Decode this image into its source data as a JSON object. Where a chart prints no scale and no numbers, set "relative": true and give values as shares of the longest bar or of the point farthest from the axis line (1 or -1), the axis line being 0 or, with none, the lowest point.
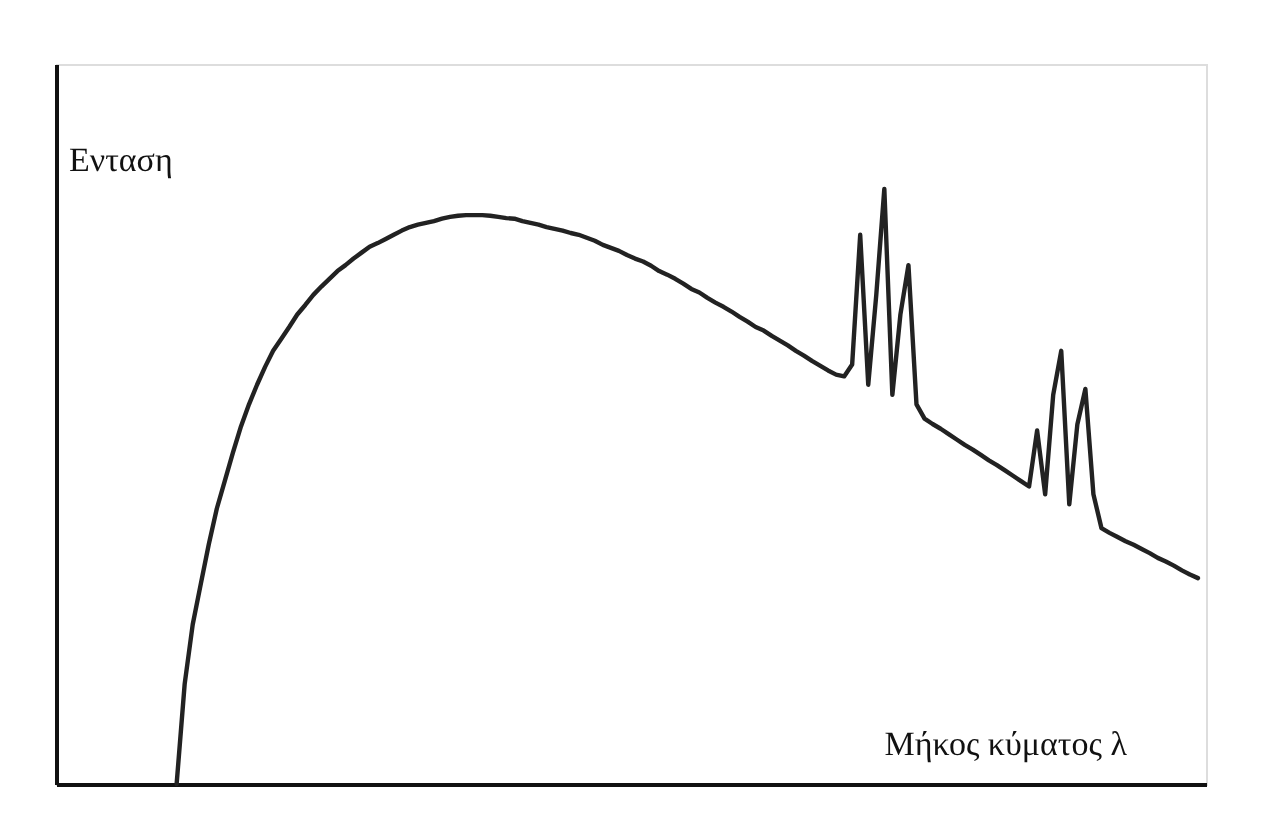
{
  "chart_data": {
    "type": "line",
    "relative": true,
    "xlabel": "Μήκος κύματος λ",
    "ylabel": "Ενταση",
    "grid": false,
    "tick_labels": false,
    "line_style": "solid",
    "categories": [
      null,
      null,
      null,
      null,
      null,
      null,
      null,
      null,
      null,
      null,
      null,
      null,
      null,
      null,
      null,
      null,
      null,
      null,
      null,
      null,
      null,
      null,
      null,
      null,
      null,
      null,
      null,
      null,
      null,
      null,
      null,
      null,
      null,
      null,
      null,
      null,
      null,
      null,
      null,
      null,
      null,
      null,
      null,
      null,
      null,
      null,
      null,
      null,
      null,
      null,
      null,
      null,
      null,
      null,
      null,
      null,
      null,
      null,
      null,
      null,
      null,
      null,
      null,
      null,
      null,
      null,
      null,
      null,
      null,
      null,
      null,
      null,
      null,
      null,
      null,
      null,
      null,
      null,
      null,
      null,
      null,
      null,
      null,
      null,
      null,
      null,
      null,
      null,
      null,
      null,
      null,
      null,
      null,
      null,
      null,
      null,
      null,
      null,
      null,
      null,
      null,
      null,
      null,
      null,
      null,
      null,
      null,
      null,
      null,
      null,
      null,
      null,
      null,
      null,
      null,
      null,
      null,
      null,
      null,
      null,
      null,
      null,
      null,
      null,
      null,
      null,
      null,
      null,
      null,
      null,
      null,
      null,
      null,
      null,
      null,
      null,
      null,
      null,
      null,
      null,
      null,
      null,
      null,
      null
    ],
    "series": [
      {
        "color": "#222222",
        "values": [
          null,
          null,
          null,
          null,
          null,
          null,
          null,
          null,
          null,
          null,
          null,
          null,
          null,
          null,
          null,
          0,
          0.168,
          0.268,
          0.336,
          0.403,
          0.463,
          0.51,
          0.557,
          0.601,
          0.638,
          0.671,
          0.701,
          0.728,
          0.748,
          0.768,
          0.789,
          0.805,
          0.822,
          0.836,
          0.849,
          0.862,
          0.872,
          0.883,
          0.893,
          0.903,
          0.909,
          0.916,
          0.923,
          0.93,
          0.936,
          0.94,
          0.943,
          0.946,
          0.95,
          0.953,
          0.955,
          0.956,
          0.956,
          0.956,
          0.955,
          0.953,
          0.951,
          0.95,
          0.946,
          0.943,
          0.94,
          0.936,
          0.933,
          0.93,
          0.926,
          0.923,
          0.918,
          0.913,
          0.906,
          0.901,
          0.896,
          0.889,
          0.883,
          0.878,
          0.871,
          0.862,
          0.856,
          0.849,
          0.841,
          0.832,
          0.826,
          0.817,
          0.809,
          0.802,
          0.794,
          0.785,
          0.777,
          0.768,
          0.762,
          0.753,
          0.745,
          0.737,
          0.728,
          0.72,
          0.711,
          0.703,
          0.695,
          0.688,
          0.685,
          0.705,
          0.923,
          0.671,
          0.822,
          1,
          0.654,
          0.789,
          0.872,
          0.638,
          0.614,
          0.605,
          0.597,
          0.588,
          0.579,
          0.57,
          0.562,
          0.553,
          0.544,
          0.536,
          0.527,
          0.518,
          0.509,
          0.5,
          0.594,
          0.487,
          0.654,
          0.728,
          0.47,
          0.604,
          0.664,
          0.487,
          0.43,
          0.422,
          0.415,
          0.408,
          0.402,
          0.395,
          0.388,
          0.38,
          0.374,
          0.367,
          0.359,
          0.352,
          0.346,
          null
        ]
      }
    ]
  }
}
